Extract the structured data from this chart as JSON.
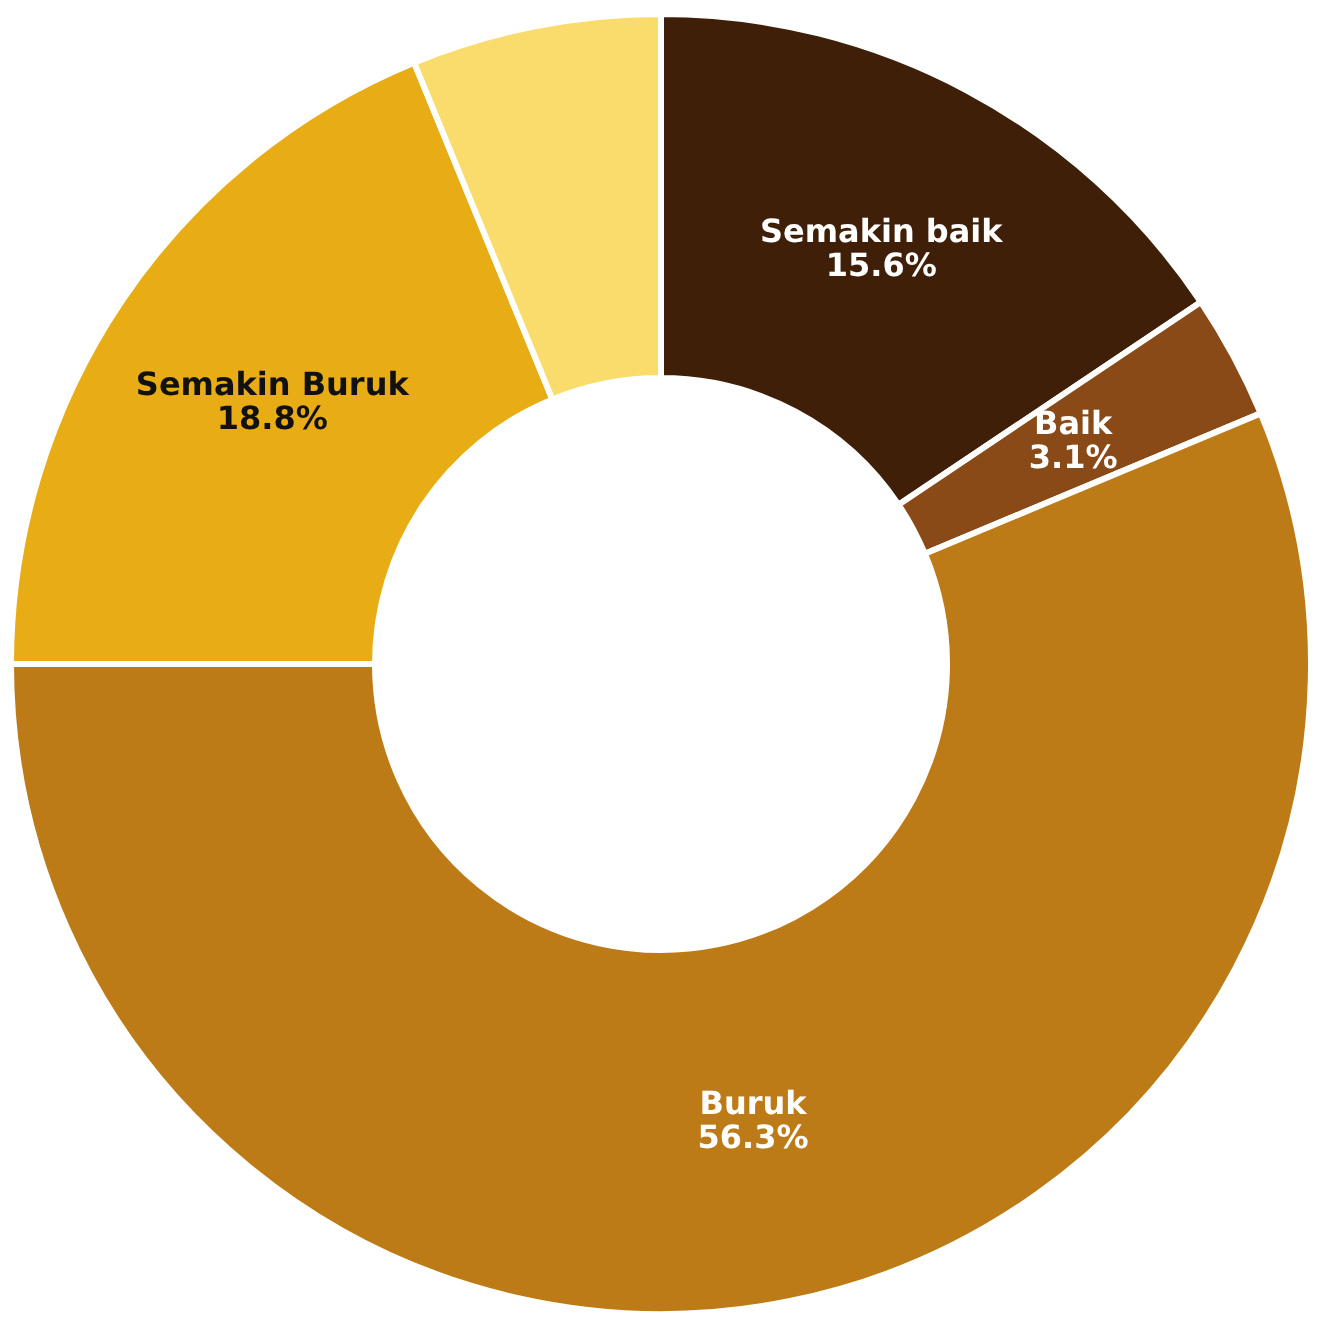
{
  "chart_data": {
    "type": "donut",
    "categories": [
      "Semakin baik",
      "Baik",
      "Buruk",
      "Semakin Buruk",
      null
    ],
    "values": [
      15.6,
      3.1,
      56.3,
      18.8,
      6.2
    ],
    "colors": [
      "#3f1f07",
      "#8a4a17",
      "#bd7b17",
      "#e8ac14",
      "#f9dc6c"
    ],
    "value_labels": [
      "15.6%",
      "3.1%",
      "56.3%",
      "18.8%",
      null
    ],
    "legend": false
  }
}
